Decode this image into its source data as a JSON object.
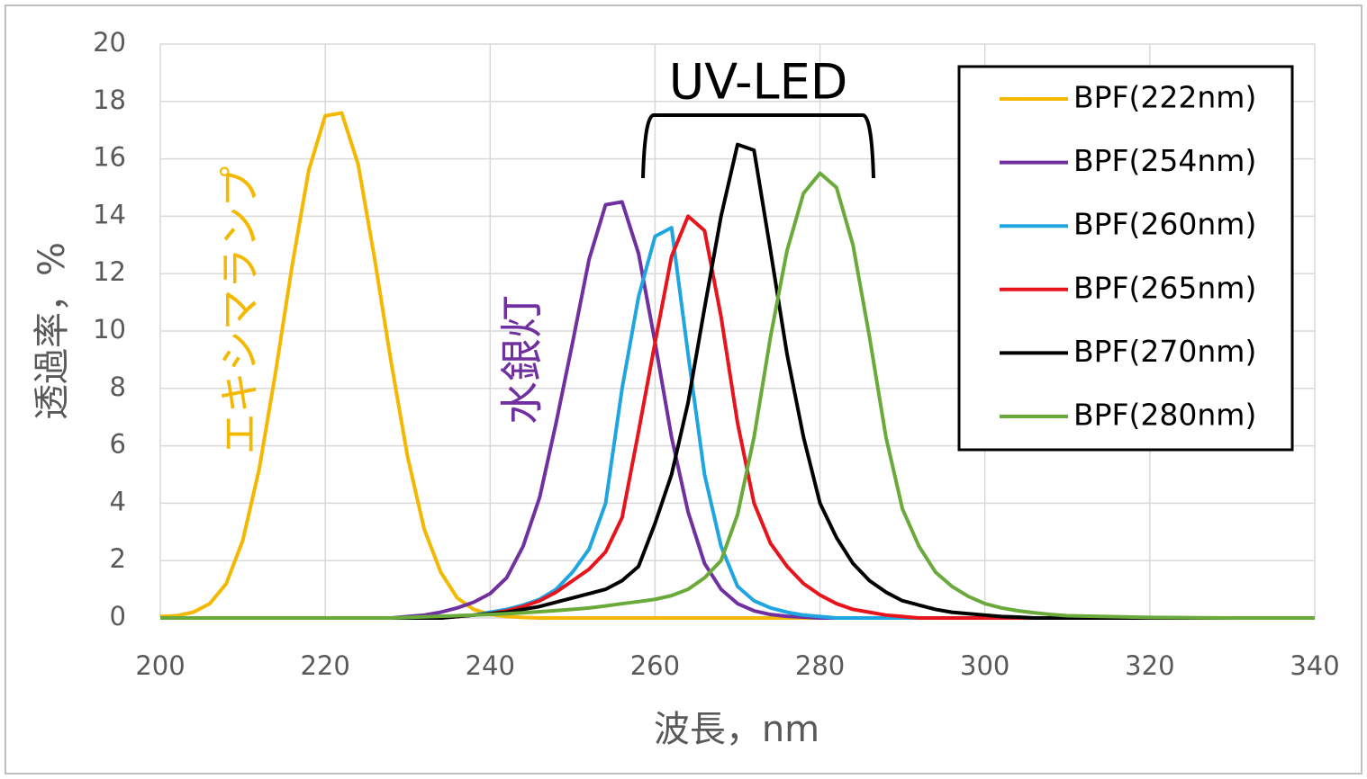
{
  "chart_data": {
    "type": "line",
    "x": [
      200,
      202,
      204,
      206,
      208,
      210,
      212,
      214,
      216,
      218,
      220,
      222,
      224,
      226,
      228,
      230,
      232,
      234,
      236,
      238,
      240,
      242,
      244,
      246,
      248,
      250,
      252,
      254,
      256,
      258,
      260,
      262,
      264,
      266,
      268,
      270,
      272,
      274,
      276,
      278,
      280,
      282,
      284,
      286,
      288,
      290,
      292,
      294,
      296,
      298,
      300,
      302,
      304,
      306,
      308,
      310,
      320,
      330,
      340
    ],
    "series": [
      {
        "name": "BPF(222nm)",
        "color": "#f5b800",
        "values": [
          0.05,
          0.08,
          0.2,
          0.5,
          1.2,
          2.7,
          5.2,
          8.6,
          12.3,
          15.6,
          17.5,
          17.6,
          15.8,
          12.5,
          8.9,
          5.6,
          3.1,
          1.6,
          0.7,
          0.3,
          0.12,
          0.05,
          0.02,
          0,
          0,
          0,
          0,
          0,
          0,
          0,
          0,
          0,
          0,
          0,
          0,
          0,
          0,
          0,
          0,
          0,
          0,
          0,
          0,
          0,
          0,
          0,
          0,
          0,
          0,
          0,
          0,
          0,
          0,
          0,
          0,
          0,
          0,
          0,
          0
        ]
      },
      {
        "name": "BPF(254nm)",
        "color": "#7030a0",
        "values": [
          0,
          0,
          0,
          0,
          0,
          0,
          0,
          0,
          0,
          0,
          0,
          0,
          0,
          0,
          0,
          0.05,
          0.1,
          0.2,
          0.35,
          0.55,
          0.85,
          1.4,
          2.5,
          4.2,
          6.8,
          9.6,
          12.5,
          14.4,
          14.5,
          12.7,
          9.6,
          6.3,
          3.7,
          1.9,
          1.0,
          0.5,
          0.25,
          0.12,
          0.06,
          0.03,
          0,
          0,
          0,
          0,
          0,
          0,
          0,
          0,
          0,
          0,
          0,
          0,
          0,
          0,
          0,
          0,
          0,
          0,
          0
        ]
      },
      {
        "name": "BPF(260nm)",
        "color": "#1fa5e0",
        "values": [
          0,
          0,
          0,
          0,
          0,
          0,
          0,
          0,
          0,
          0,
          0,
          0,
          0,
          0,
          0,
          0,
          0,
          0,
          0.05,
          0.1,
          0.2,
          0.3,
          0.45,
          0.65,
          1.0,
          1.6,
          2.4,
          4.0,
          8.0,
          11.2,
          13.3,
          13.6,
          9.2,
          5.0,
          2.5,
          1.1,
          0.6,
          0.35,
          0.2,
          0.1,
          0.05,
          0,
          0,
          0,
          0,
          0,
          0,
          0,
          0,
          0,
          0,
          0,
          0,
          0,
          0,
          0,
          0,
          0,
          0
        ]
      },
      {
        "name": "BPF(265nm)",
        "color": "#e8141c",
        "values": [
          0,
          0,
          0,
          0,
          0,
          0,
          0,
          0,
          0,
          0,
          0,
          0,
          0,
          0,
          0,
          0,
          0,
          0,
          0.05,
          0.1,
          0.15,
          0.25,
          0.4,
          0.6,
          0.9,
          1.3,
          1.7,
          2.3,
          3.5,
          6.5,
          9.6,
          12.6,
          14.0,
          13.5,
          10.5,
          6.8,
          4.0,
          2.6,
          1.8,
          1.2,
          0.8,
          0.5,
          0.3,
          0.2,
          0.1,
          0.05,
          0,
          0,
          0,
          0,
          0,
          0,
          0,
          0,
          0,
          0,
          0,
          0,
          0
        ]
      },
      {
        "name": "BPF(270nm)",
        "color": "#000000",
        "values": [
          0,
          0,
          0,
          0,
          0,
          0,
          0,
          0,
          0,
          0,
          0,
          0,
          0,
          0,
          0,
          0,
          0,
          0,
          0.05,
          0.1,
          0.15,
          0.2,
          0.3,
          0.4,
          0.55,
          0.7,
          0.85,
          1.0,
          1.3,
          1.8,
          3.3,
          5.0,
          7.5,
          10.8,
          14.0,
          16.5,
          16.3,
          12.8,
          9.2,
          6.3,
          4.0,
          2.8,
          1.9,
          1.3,
          0.9,
          0.6,
          0.45,
          0.3,
          0.2,
          0.15,
          0.1,
          0.05,
          0.03,
          0,
          0,
          0,
          0,
          0,
          0
        ]
      },
      {
        "name": "BPF(280nm)",
        "color": "#6aaa3a",
        "values": [
          0,
          0,
          0,
          0,
          0,
          0,
          0,
          0,
          0,
          0,
          0,
          0,
          0,
          0,
          0,
          0.02,
          0.04,
          0.06,
          0.08,
          0.1,
          0.12,
          0.15,
          0.18,
          0.22,
          0.26,
          0.3,
          0.35,
          0.42,
          0.5,
          0.57,
          0.65,
          0.78,
          1.0,
          1.4,
          2.0,
          3.6,
          6.3,
          9.8,
          12.8,
          14.8,
          15.5,
          15.0,
          13.0,
          9.8,
          6.3,
          3.8,
          2.5,
          1.6,
          1.1,
          0.75,
          0.5,
          0.35,
          0.25,
          0.18,
          0.12,
          0.08,
          0.02,
          0,
          0
        ]
      }
    ],
    "xlim": [
      200,
      340
    ],
    "xticks": [
      200,
      220,
      240,
      260,
      280,
      300,
      320,
      340
    ],
    "ylim": [
      0,
      20
    ],
    "yticks": [
      0,
      2,
      4,
      6,
      8,
      10,
      12,
      14,
      16,
      18,
      20
    ],
    "x_label": "波長，nm",
    "y_label": "透過率，%",
    "grid": true,
    "legend": "upper right",
    "annotations": [
      {
        "text": "エキシマランプ",
        "color": "#f5b800"
      },
      {
        "text": "水銀灯",
        "color": "#7030a0"
      },
      {
        "text": "UV-LED",
        "color": "#000000"
      }
    ]
  }
}
